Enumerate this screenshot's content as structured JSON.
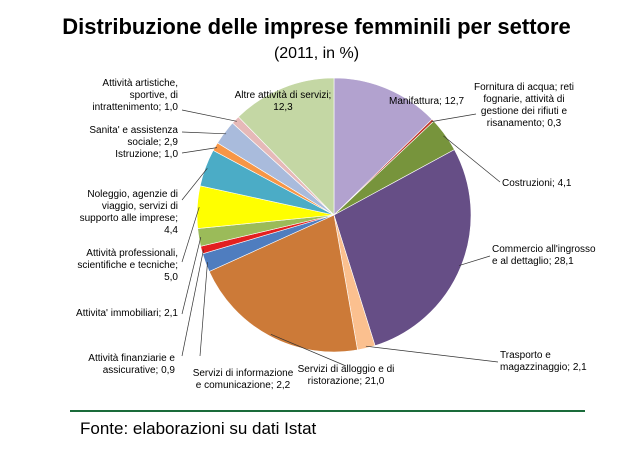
{
  "title": "Distribuzione delle imprese femminili per settore",
  "subtitle": "(2011, in %)",
  "source": "Fonte: elaborazioni su dati Istat",
  "chart_data": {
    "type": "pie",
    "title": "Distribuzione delle imprese femminili per settore",
    "subtitle": "(2011, in %)",
    "slices": [
      {
        "label": [
          "Manifattura; 12,7"
        ],
        "value": 12.7,
        "color": "#b2a2cf"
      },
      {
        "label": [
          "Fornitura di acqua; reti",
          "fognarie, attività di",
          "gestione dei rifiuti e",
          "risanamento; 0,3"
        ],
        "value": 0.3,
        "color": "#c0392b"
      },
      {
        "label": [
          "Costruzioni; 4,1"
        ],
        "value": 4.1,
        "color": "#77943c"
      },
      {
        "label": [
          "Commercio all'ingrosso",
          "e al dettaglio; 28,1"
        ],
        "value": 28.1,
        "color": "#664e86"
      },
      {
        "label": [
          "Trasporto e",
          "magazzinaggio; 2,1"
        ],
        "value": 2.1,
        "color": "#fbc08f"
      },
      {
        "label": [
          "Servizi di alloggio e di",
          "ristorazione; 21,0"
        ],
        "value": 21.0,
        "color": "#cc7a38"
      },
      {
        "label": [
          "Servizi di informazione",
          "e comunicazione; 2,2"
        ],
        "value": 2.2,
        "color": "#4f7dbf"
      },
      {
        "label": [
          "Attività finanziarie e",
          "assicurative; 0,9"
        ],
        "value": 0.9,
        "color": "#e32020"
      },
      {
        "label": [
          "Attivita' immobiliari; 2,1"
        ],
        "value": 2.1,
        "color": "#9bbb59"
      },
      {
        "label": [
          "Attività professionali,",
          "scientifiche e tecniche;",
          "5,0"
        ],
        "value": 5.0,
        "color": "#ffff00"
      },
      {
        "label": [
          "Noleggio, agenzie di",
          "viaggio, servizi di",
          "supporto alle imprese;",
          "4,4"
        ],
        "value": 4.4,
        "color": "#4bacc6"
      },
      {
        "label": [
          "Istruzione; 1,0"
        ],
        "value": 1.0,
        "color": "#f79646"
      },
      {
        "label": [
          "Sanita' e assistenza",
          "sociale; 2,9"
        ],
        "value": 2.9,
        "color": "#a9bbdc"
      },
      {
        "label": [
          "Attività artistiche,",
          "sportive, di",
          "intrattenimento; 1,0"
        ],
        "value": 1.0,
        "color": "#e6b9b8"
      },
      {
        "label": [
          "Altre attività di servizi;",
          "12,3"
        ],
        "value": 12.3,
        "color": "#c4d7a4"
      }
    ]
  }
}
